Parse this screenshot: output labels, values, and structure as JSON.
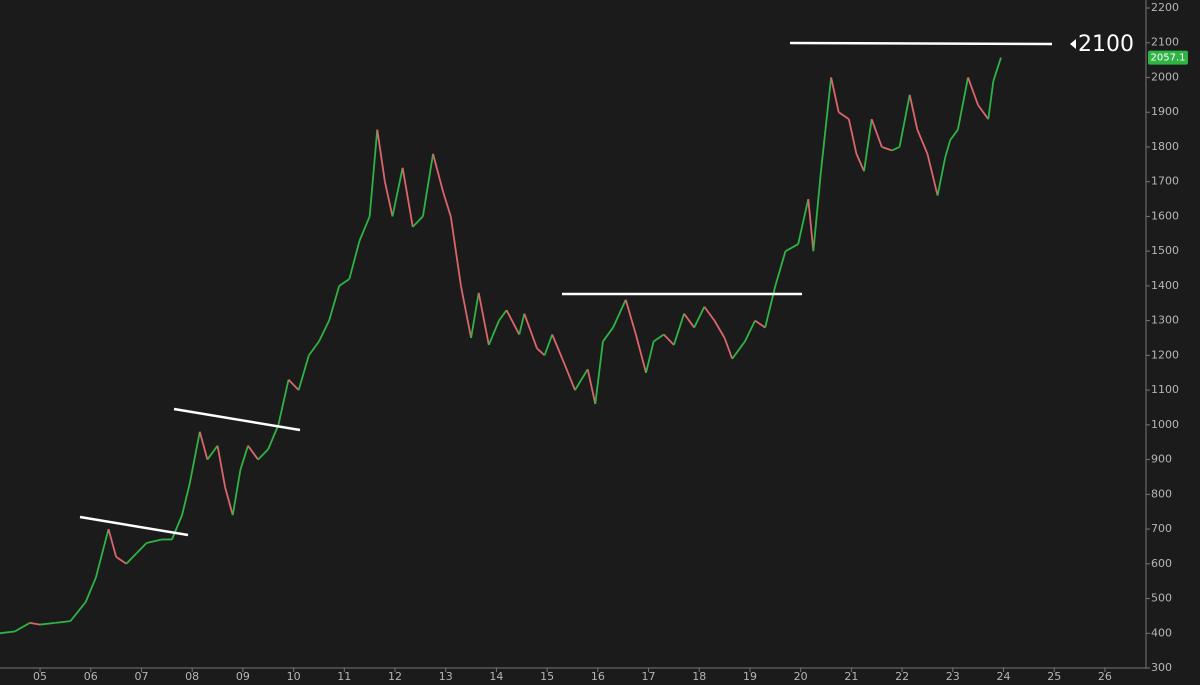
{
  "chart_data": {
    "type": "line",
    "annotation": "2100",
    "x": [
      2004.2,
      2004.5,
      2004.8,
      2005.0,
      2005.3,
      2005.6,
      2005.9,
      2006.1,
      2006.35,
      2006.5,
      2006.7,
      2006.9,
      2007.1,
      2007.4,
      2007.6,
      2007.8,
      2007.95,
      2008.15,
      2008.3,
      2008.5,
      2008.65,
      2008.8,
      2008.95,
      2009.1,
      2009.3,
      2009.5,
      2009.7,
      2009.9,
      2010.1,
      2010.3,
      2010.5,
      2010.7,
      2010.9,
      2011.1,
      2011.3,
      2011.5,
      2011.65,
      2011.8,
      2011.95,
      2012.15,
      2012.35,
      2012.55,
      2012.75,
      2012.95,
      2013.1,
      2013.3,
      2013.5,
      2013.65,
      2013.85,
      2014.05,
      2014.2,
      2014.45,
      2014.55,
      2014.8,
      2014.95,
      2015.1,
      2015.3,
      2015.55,
      2015.8,
      2015.95,
      2016.1,
      2016.3,
      2016.55,
      2016.75,
      2016.95,
      2017.1,
      2017.3,
      2017.5,
      2017.7,
      2017.9,
      2018.1,
      2018.3,
      2018.5,
      2018.65,
      2018.9,
      2019.1,
      2019.3,
      2019.5,
      2019.7,
      2019.95,
      2020.15,
      2020.25,
      2020.4,
      2020.6,
      2020.75,
      2020.95,
      2021.1,
      2021.25,
      2021.4,
      2021.6,
      2021.8,
      2021.95,
      2022.15,
      2022.3,
      2022.5,
      2022.7,
      2022.85,
      2022.95,
      2023.1,
      2023.3,
      2023.5,
      2023.7,
      2023.8,
      2023.95
    ],
    "values": [
      400,
      405,
      430,
      425,
      430,
      435,
      490,
      560,
      700,
      620,
      600,
      630,
      660,
      670,
      670,
      740,
      830,
      980,
      900,
      940,
      820,
      740,
      870,
      940,
      900,
      930,
      1000,
      1130,
      1100,
      1200,
      1240,
      1300,
      1400,
      1420,
      1530,
      1600,
      1850,
      1700,
      1600,
      1740,
      1570,
      1600,
      1780,
      1670,
      1600,
      1400,
      1250,
      1380,
      1230,
      1300,
      1330,
      1260,
      1320,
      1220,
      1200,
      1260,
      1190,
      1100,
      1160,
      1060,
      1240,
      1280,
      1360,
      1260,
      1150,
      1240,
      1260,
      1230,
      1320,
      1280,
      1340,
      1300,
      1250,
      1190,
      1240,
      1300,
      1280,
      1400,
      1500,
      1520,
      1650,
      1500,
      1730,
      2000,
      1900,
      1880,
      1780,
      1730,
      1880,
      1800,
      1790,
      1800,
      1950,
      1850,
      1780,
      1660,
      1770,
      1820,
      1850,
      2000,
      1920,
      1880,
      1990,
      2057.1
    ],
    "up_color": "#2fb344",
    "down_color": "#d9666b",
    "xlim": [
      2004.21,
      2026.81
    ],
    "xticks": [
      {
        "value": 2005,
        "label": "05"
      },
      {
        "value": 2006,
        "label": "06"
      },
      {
        "value": 2007,
        "label": "07"
      },
      {
        "value": 2008,
        "label": "08"
      },
      {
        "value": 2009,
        "label": "09"
      },
      {
        "value": 2010,
        "label": "10"
      },
      {
        "value": 2011,
        "label": "11"
      },
      {
        "value": 2012,
        "label": "12"
      },
      {
        "value": 2013,
        "label": "13"
      },
      {
        "value": 2014,
        "label": "14"
      },
      {
        "value": 2015,
        "label": "15"
      },
      {
        "value": 2016,
        "label": "16"
      },
      {
        "value": 2017,
        "label": "17"
      },
      {
        "value": 2018,
        "label": "18"
      },
      {
        "value": 2019,
        "label": "19"
      },
      {
        "value": 2020,
        "label": "20"
      },
      {
        "value": 2021,
        "label": "21"
      },
      {
        "value": 2022,
        "label": "22"
      },
      {
        "value": 2023,
        "label": "23"
      },
      {
        "value": 2024,
        "label": "24"
      },
      {
        "value": 2025,
        "label": "25"
      },
      {
        "value": 2026,
        "label": "26"
      }
    ],
    "ylim": [
      300,
      2200
    ],
    "yticks": [
      300,
      400,
      500,
      600,
      700,
      800,
      900,
      1000,
      1100,
      1200,
      1300,
      1400,
      1500,
      1600,
      1700,
      1800,
      1900,
      2000,
      2100,
      2200
    ]
  }
}
